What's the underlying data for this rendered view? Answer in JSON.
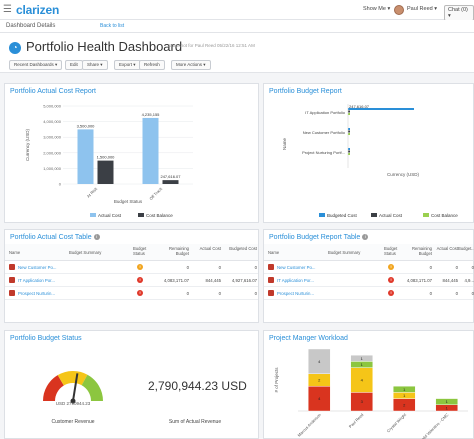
{
  "topbar": {
    "logo": "clarizen",
    "show_me": "Show Me ▾",
    "user": "Paul Reed ▾",
    "chat": "Chat (0) ▾"
  },
  "subbar": {
    "breadcrumb": "Dashboard Details",
    "back": "Back to list"
  },
  "header": {
    "title": "Portfolio Health Dashboard",
    "subtitle": "Snapshot for Paul Reed 05/22/16 12:51 AM",
    "buttons": [
      "Recent Dashboards ▾",
      "Edit",
      "Share ▾",
      "Export ▾",
      "Refresh",
      "More Actions ▾"
    ]
  },
  "panels": {
    "actual_cost": {
      "title": "Portfolio Actual Cost Report",
      "chart_data": {
        "type": "bar",
        "categories": [
          "At Risk",
          "Off Track"
        ],
        "series": [
          {
            "name": "Actual Cost",
            "values": [
              3500000,
              4235155
            ],
            "color": "#8ec3ee"
          },
          {
            "name": "Cost Balance",
            "values": [
              1500000,
              247616.07
            ],
            "color": "#3b3f45"
          }
        ],
        "value_labels": [
          [
            "3,500,000",
            "4,235,155"
          ],
          [
            "1,500,000",
            "247,616.07"
          ]
        ],
        "yticks": [
          "5,000,000",
          "4,000,000",
          "3,000,000",
          "2,000,000",
          "1,000,000",
          "0"
        ],
        "ylim": [
          0,
          5000000
        ],
        "xlabel": "Budget Status",
        "ylabel": "Currency (USD)"
      }
    },
    "budget_report": {
      "title": "Portfolio Budget Report",
      "chart_data": {
        "type": "bar",
        "orientation": "horizontal",
        "categories": [
          "IT Application Portfolio",
          "New Customer Portfolio",
          "Project Nurturing Portf..."
        ],
        "series": [
          {
            "name": "Budgeted Cost",
            "values": [
              247616.07,
              0,
              0
            ],
            "color": "#2a8fd8"
          },
          {
            "name": "Actual Cost",
            "values": [
              0,
              0,
              0
            ],
            "color": "#3b3f45"
          },
          {
            "name": "Cost Balance",
            "values": [
              0,
              0,
              0
            ],
            "color": "#9ad04f"
          }
        ],
        "value_labels": [
          "247,616.07"
        ],
        "xlabel": "Currency (USD)",
        "ylabel": "Name"
      }
    },
    "actual_cost_table": {
      "title": "Portfolio Actual Cost Table",
      "headers": [
        "Name",
        "Budget Summary",
        "Budget Status",
        "Remaining Budget",
        "Actual Cost",
        "Budgeted Cost"
      ],
      "rows": [
        {
          "name": "New Customer Po...",
          "summary": "",
          "status": "!",
          "status_color": "#f1a51f",
          "remaining": "0",
          "actual": "0",
          "budgeted": "0"
        },
        {
          "name": "IT Application Por...",
          "summary": "",
          "status": "!",
          "status_color": "#e0392b",
          "remaining": "4,083,171.07",
          "actual": "844,445",
          "budgeted": "4,927,616.07"
        },
        {
          "name": "Prospect Nurturin...",
          "summary": "",
          "status": "!",
          "status_color": "#e0392b",
          "remaining": "0",
          "actual": "0",
          "budgeted": "0"
        }
      ]
    },
    "budget_table": {
      "title": "Portfolio Budget Report Table",
      "headers": [
        "Name",
        "Budget Summary",
        "Budget Status",
        "Remaining Budget",
        "Actual Cost",
        "Budget..."
      ],
      "rows": [
        {
          "name": "New Customer Po...",
          "summary": "",
          "status": "!",
          "status_color": "#f1a51f",
          "remaining": "0",
          "actual": "0",
          "budgeted": "0"
        },
        {
          "name": "IT Application Por...",
          "summary": "",
          "status": "!",
          "status_color": "#e0392b",
          "remaining": "4,083,171.07",
          "actual": "844,445",
          "budgeted": "4,9..."
        },
        {
          "name": "Prospect Nurturin...",
          "summary": "",
          "status": "!",
          "status_color": "#e0392b",
          "remaining": "0",
          "actual": "0",
          "budgeted": "0"
        }
      ]
    },
    "budget_status": {
      "title": "Portfolio Budget Status",
      "gauge_label": "USD 2790944.23",
      "gauge_caption": "Customer Revenue",
      "gauge_value_fraction": 0.55,
      "big_number": "2,790,944.23 USD",
      "big_caption": "Sum of Actual Revenue"
    },
    "workload": {
      "title": "Project Manger Workload",
      "chart_data": {
        "type": "bar",
        "stacked": true,
        "categories": [
          "Marcus Anderson",
          "Paul Reed",
          "Crystal Wright",
          "Todd Valentino - CMC"
        ],
        "series": [
          {
            "name": "Red",
            "values": [
              4,
              3,
              2,
              1
            ],
            "color": "#d9341f"
          },
          {
            "name": "Yellow",
            "values": [
              2,
              4,
              1,
              0
            ],
            "color": "#f5c518"
          },
          {
            "name": "Green",
            "values": [
              0,
              1,
              1,
              1
            ],
            "color": "#8cc63f"
          },
          {
            "name": "Gray",
            "values": [
              4,
              1,
              0,
              0
            ],
            "color": "#c8c8c8"
          }
        ],
        "ylabel": "# of Projects"
      }
    }
  }
}
